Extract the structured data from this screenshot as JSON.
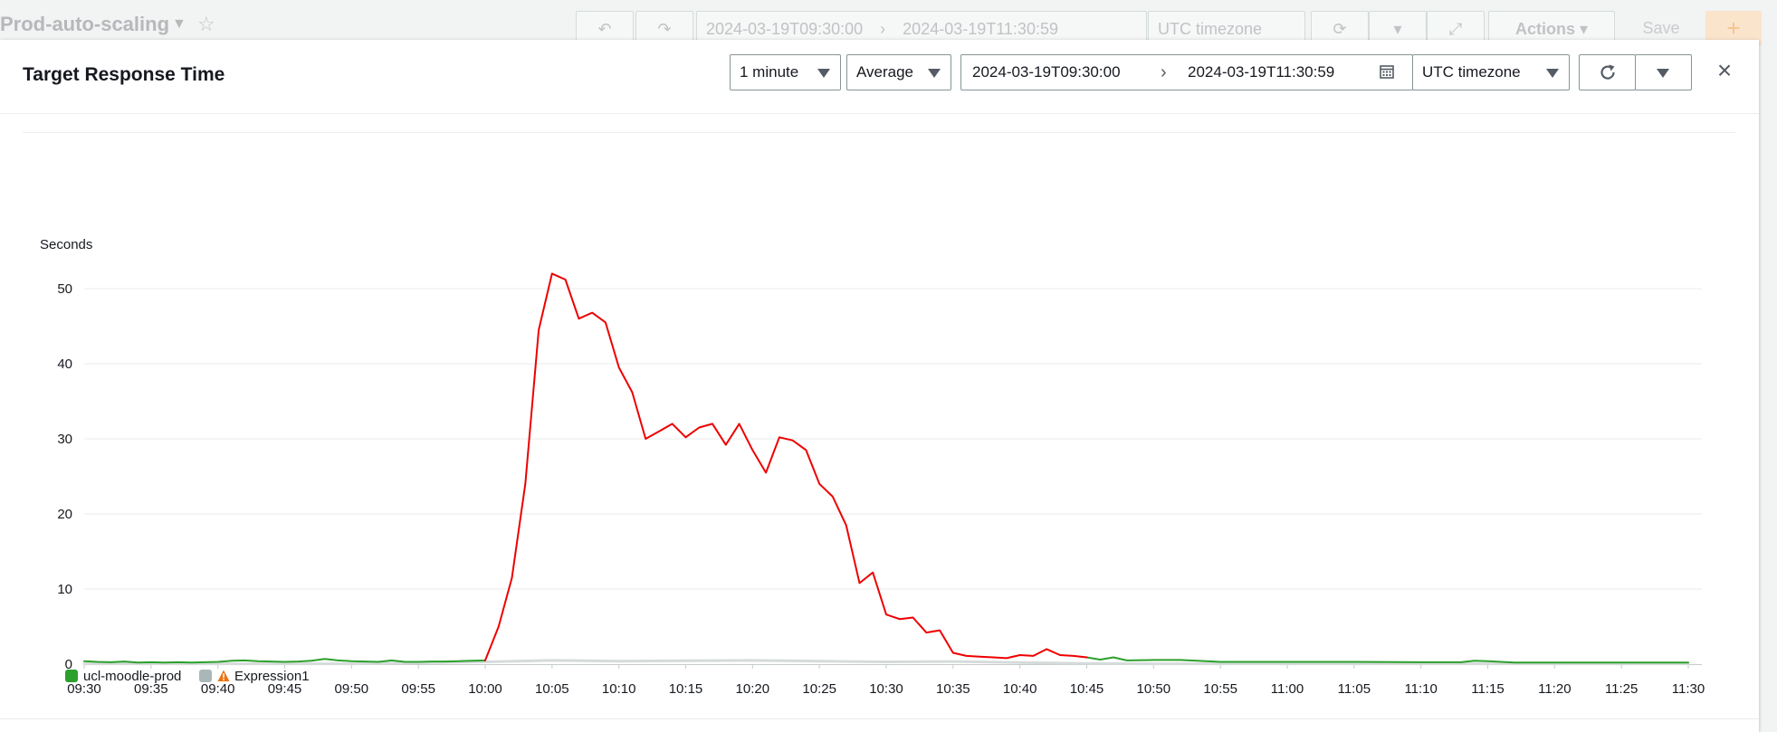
{
  "background": {
    "dashboard_title": "Prod-auto-scaling",
    "start": "2024-03-19T09:30:00",
    "end": "2024-03-19T11:30:59",
    "timezone": "UTC timezone",
    "actions_label": "Actions",
    "save_label": "Save",
    "add_label": "+"
  },
  "modal": {
    "title": "Target Response Time",
    "period": "1 minute",
    "statistic": "Average",
    "range_start": "2024-03-19T09:30:00",
    "range_end": "2024-03-19T11:30:59",
    "timezone": "UTC timezone",
    "close_label": "×"
  },
  "colors": {
    "series_main": "#ee0000",
    "series_green": "#2ca02c",
    "series_gray": "#aab7b8",
    "warning": "#ec7211"
  },
  "chart_data": {
    "type": "line",
    "ylabel": "Seconds",
    "ylim": [
      0,
      55
    ],
    "yticks": [
      0,
      10,
      20,
      30,
      40,
      50
    ],
    "xticks": [
      "09:30",
      "09:35",
      "09:40",
      "09:45",
      "09:50",
      "09:55",
      "10:00",
      "10:05",
      "10:10",
      "10:15",
      "10:20",
      "10:25",
      "10:30",
      "10:35",
      "10:40",
      "10:45",
      "10:50",
      "10:55",
      "11:00",
      "11:05",
      "11:10",
      "11:15",
      "11:20",
      "11:25",
      "11:30"
    ],
    "xtick_minutes": [
      0,
      5,
      10,
      15,
      20,
      25,
      30,
      35,
      40,
      45,
      50,
      55,
      60,
      65,
      70,
      75,
      80,
      85,
      90,
      95,
      100,
      105,
      110,
      115,
      120
    ],
    "grid": true,
    "legend_position": "bottom-left",
    "legend": [
      {
        "label": "ucl-moodle-prod",
        "color": "#2ca02c",
        "warning": false
      },
      {
        "label": "Expression1",
        "color": "#aab7b8",
        "warning": true
      }
    ],
    "series": [
      {
        "name": "ucl-moodle-prod",
        "color": "#2ca02c",
        "x": [
          0,
          1,
          2,
          3,
          4,
          5,
          6,
          7,
          8,
          9,
          10,
          11,
          12,
          13,
          14,
          15,
          16,
          17,
          18,
          19,
          20,
          21,
          22,
          23,
          24,
          25,
          26,
          27,
          28,
          29,
          30
        ],
        "values": [
          0.4,
          0.3,
          0.25,
          0.35,
          0.2,
          0.25,
          0.2,
          0.25,
          0.2,
          0.25,
          0.3,
          0.45,
          0.5,
          0.4,
          0.35,
          0.3,
          0.35,
          0.45,
          0.7,
          0.5,
          0.4,
          0.35,
          0.3,
          0.5,
          0.3,
          0.3,
          0.35,
          0.35,
          0.4,
          0.45,
          0.5
        ]
      },
      {
        "name": "",
        "color": "#ee0000",
        "x": [
          30,
          31,
          32,
          33,
          34,
          35,
          36,
          37,
          38,
          39,
          40,
          41,
          42,
          43,
          44,
          45,
          46,
          47,
          48,
          49,
          50,
          51,
          52,
          53,
          54,
          55,
          56,
          57,
          58,
          59,
          60,
          61,
          62,
          63,
          64,
          65,
          66,
          67,
          68,
          69,
          70,
          71,
          72,
          73,
          74,
          75
        ],
        "values": [
          0.5,
          5,
          11.5,
          24,
          44.5,
          52,
          51.2,
          46,
          46.8,
          45.5,
          39.5,
          36.2,
          30,
          31,
          32,
          30.2,
          31.5,
          32,
          29.2,
          32,
          28.5,
          25.5,
          30.2,
          29.8,
          28.5,
          24,
          22.3,
          18.5,
          10.8,
          12.2,
          6.6,
          6,
          6.2,
          4.2,
          4.5,
          1.5,
          1.1,
          1,
          0.9,
          0.8,
          1.2,
          1.1,
          2,
          1.2,
          1.1,
          0.9
        ]
      },
      {
        "name": "",
        "color": "#2ca02c",
        "x": [
          75,
          76,
          77,
          78,
          80,
          82,
          85,
          90,
          95,
          100,
          103,
          104,
          105,
          107,
          110,
          115,
          120
        ],
        "values": [
          0.9,
          0.6,
          0.9,
          0.5,
          0.55,
          0.55,
          0.3,
          0.3,
          0.3,
          0.25,
          0.25,
          0.45,
          0.4,
          0.2,
          0.2,
          0.2,
          0.2
        ]
      },
      {
        "name": "",
        "color": "#d5dbdb",
        "x": [
          0,
          10,
          20,
          30,
          35,
          40,
          45,
          50,
          55,
          60,
          65,
          70,
          75,
          80,
          90,
          100,
          110,
          120
        ],
        "values": [
          0.05,
          0.05,
          0.05,
          0.3,
          0.5,
          0.4,
          0.45,
          0.5,
          0.4,
          0.3,
          0.35,
          0.2,
          0.1,
          0.05,
          0.05,
          0.05,
          0.05,
          0.05
        ]
      }
    ]
  }
}
